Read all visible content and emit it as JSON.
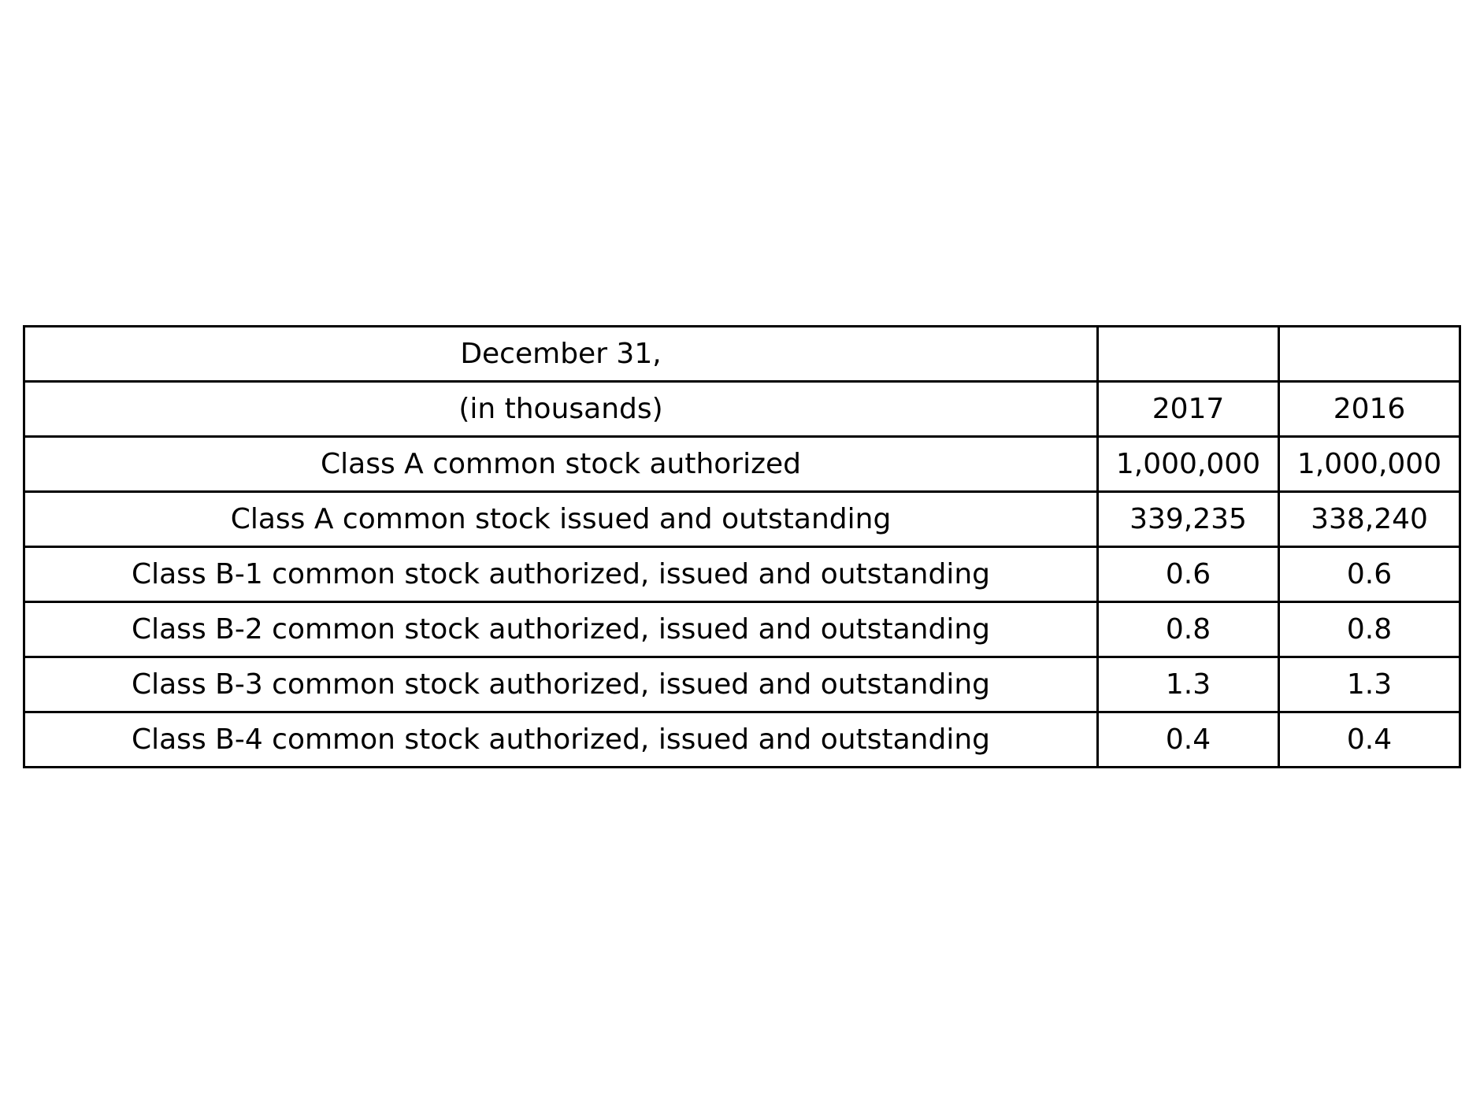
{
  "chart_data": {
    "type": "table",
    "rows": [
      [
        "December 31,",
        "",
        ""
      ],
      [
        "(in thousands)",
        "2017",
        "2016"
      ],
      [
        "Class A common stock authorized",
        "1,000,000",
        "1,000,000"
      ],
      [
        "Class A common stock issued and outstanding",
        "339,235",
        "338,240"
      ],
      [
        "Class B-1 common stock authorized, issued and outstanding",
        "0.6",
        "0.6"
      ],
      [
        "Class B-2 common stock authorized, issued and outstanding",
        "0.8",
        "0.8"
      ],
      [
        "Class B-3 common stock authorized, issued and outstanding",
        "1.3",
        "1.3"
      ],
      [
        "Class B-4 common stock authorized, issued and outstanding",
        "0.4",
        "0.4"
      ]
    ]
  }
}
